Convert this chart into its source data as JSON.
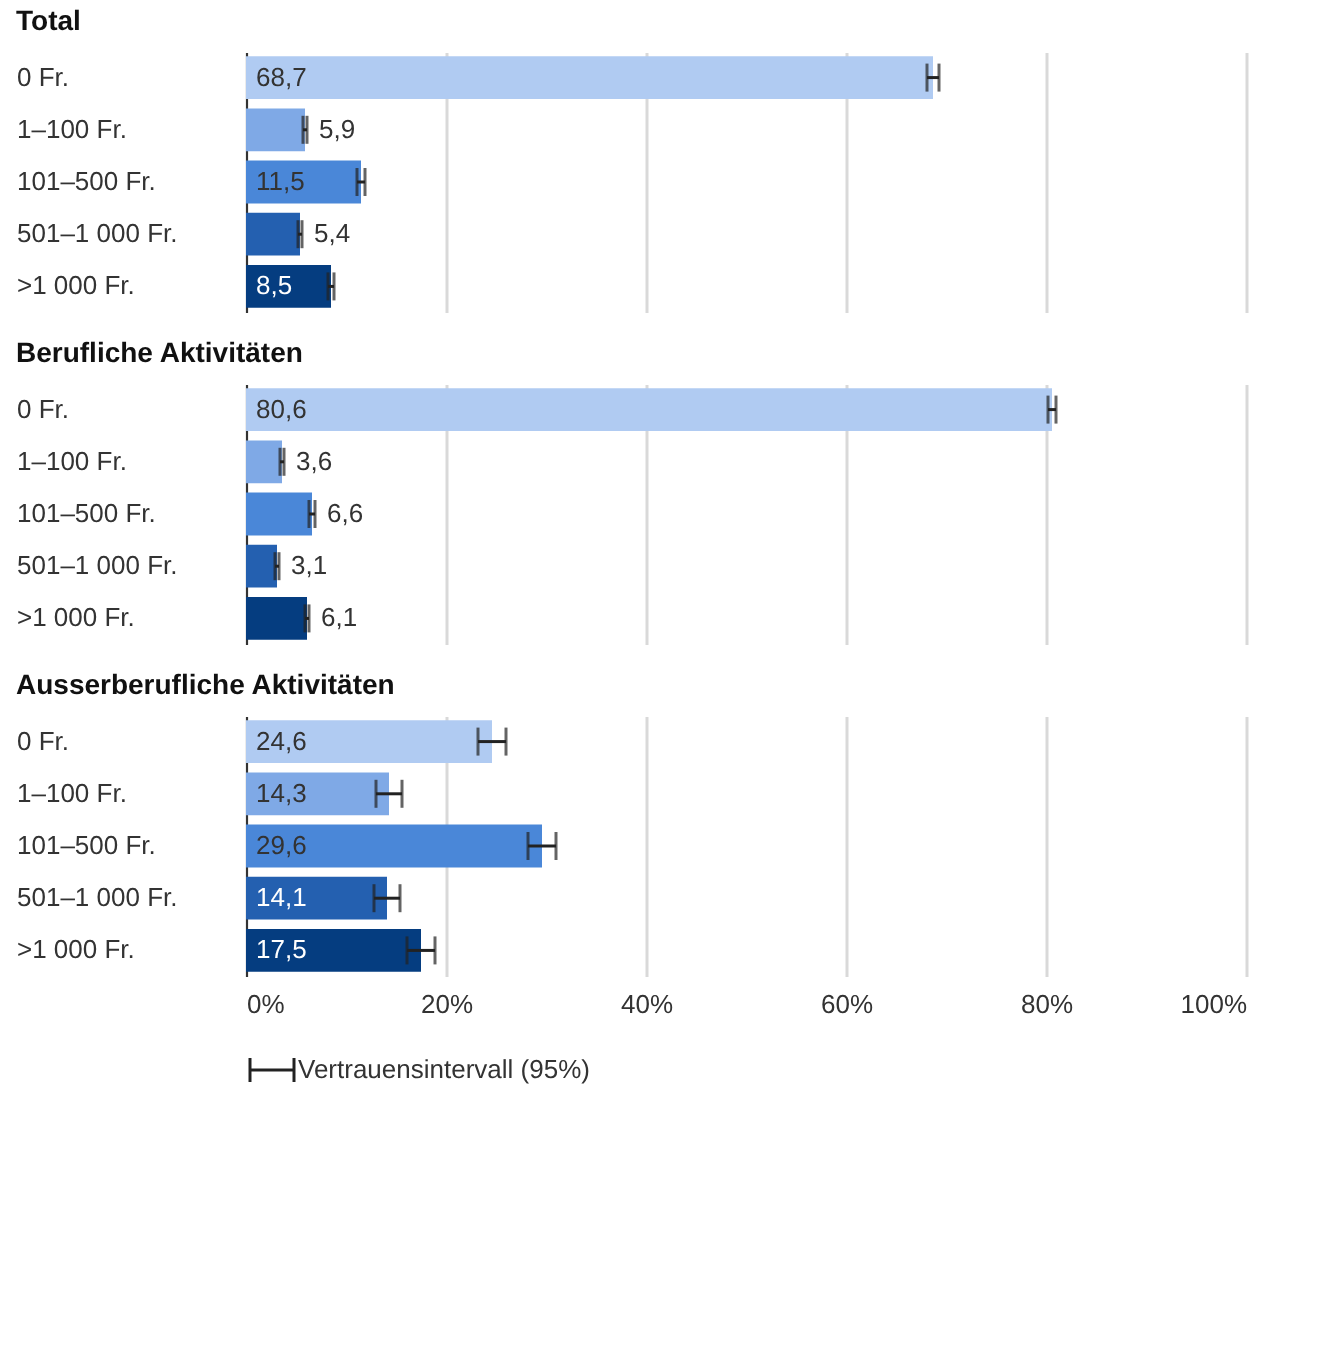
{
  "chart_data": [
    {
      "type": "bar",
      "orientation": "horizontal",
      "title": "Total",
      "categories": [
        "0 Fr.",
        "1–100 Fr.",
        "101–500 Fr.",
        "501–1 000 Fr.",
        ">1 000 Fr."
      ],
      "values": [
        68.7,
        5.9,
        11.5,
        5.4,
        8.5
      ],
      "errors": [
        0.6,
        0.2,
        0.4,
        0.2,
        0.3
      ],
      "value_labels": [
        "68,7",
        "5,9",
        "11,5",
        "5,4",
        "8,5"
      ],
      "colors": [
        "#b0cbf2",
        "#7fa9e6",
        "#4a87d8",
        "#2460b0",
        "#053d80"
      ],
      "xlim": [
        0,
        100
      ],
      "xticks": [
        {
          "value": 0,
          "label": null
        },
        {
          "value": 20,
          "label": null
        },
        {
          "value": 40,
          "label": null
        },
        {
          "value": 60,
          "label": null
        },
        {
          "value": 80,
          "label": null
        },
        {
          "value": 100,
          "label": null
        }
      ],
      "grid": "x",
      "tick_labels": "y"
    },
    {
      "type": "bar",
      "orientation": "horizontal",
      "title": "Berufliche Aktivitäten",
      "categories": [
        "0 Fr.",
        "1–100 Fr.",
        "101–500 Fr.",
        "501–1 000 Fr.",
        ">1 000 Fr."
      ],
      "values": [
        80.6,
        3.6,
        6.6,
        3.1,
        6.1
      ],
      "errors": [
        0.4,
        0.2,
        0.3,
        0.2,
        0.2
      ],
      "value_labels": [
        "80,6",
        "3,6",
        "6,6",
        "3,1",
        "6,1"
      ],
      "colors": [
        "#b0cbf2",
        "#7fa9e6",
        "#4a87d8",
        "#2460b0",
        "#053d80"
      ],
      "xlim": [
        0,
        100
      ],
      "xticks": [
        {
          "value": 0,
          "label": null
        },
        {
          "value": 20,
          "label": null
        },
        {
          "value": 40,
          "label": null
        },
        {
          "value": 60,
          "label": null
        },
        {
          "value": 80,
          "label": null
        },
        {
          "value": 100,
          "label": null
        }
      ],
      "grid": "x",
      "tick_labels": "y"
    },
    {
      "type": "bar",
      "orientation": "horizontal",
      "title": "Ausserberufliche Aktivitäten",
      "categories": [
        "0 Fr.",
        "1–100 Fr.",
        "101–500 Fr.",
        "501–1 000 Fr.",
        ">1 000 Fr."
      ],
      "values": [
        24.6,
        14.3,
        29.6,
        14.1,
        17.5
      ],
      "errors": [
        1.4,
        1.3,
        1.4,
        1.3,
        1.4
      ],
      "value_labels": [
        "24,6",
        "14,3",
        "29,6",
        "14,1",
        "17,5"
      ],
      "colors": [
        "#b0cbf2",
        "#7fa9e6",
        "#4a87d8",
        "#2460b0",
        "#053d80"
      ],
      "xlim": [
        0,
        100
      ],
      "xticks": [
        {
          "value": 0,
          "label": "0%"
        },
        {
          "value": 20,
          "label": "20%"
        },
        {
          "value": 40,
          "label": "40%"
        },
        {
          "value": 60,
          "label": "60%"
        },
        {
          "value": 80,
          "label": "80%"
        },
        {
          "value": 100,
          "label": "100%"
        }
      ],
      "grid": "x",
      "annotations": [
        "Vertrauensintervall (95%)"
      ]
    }
  ]
}
